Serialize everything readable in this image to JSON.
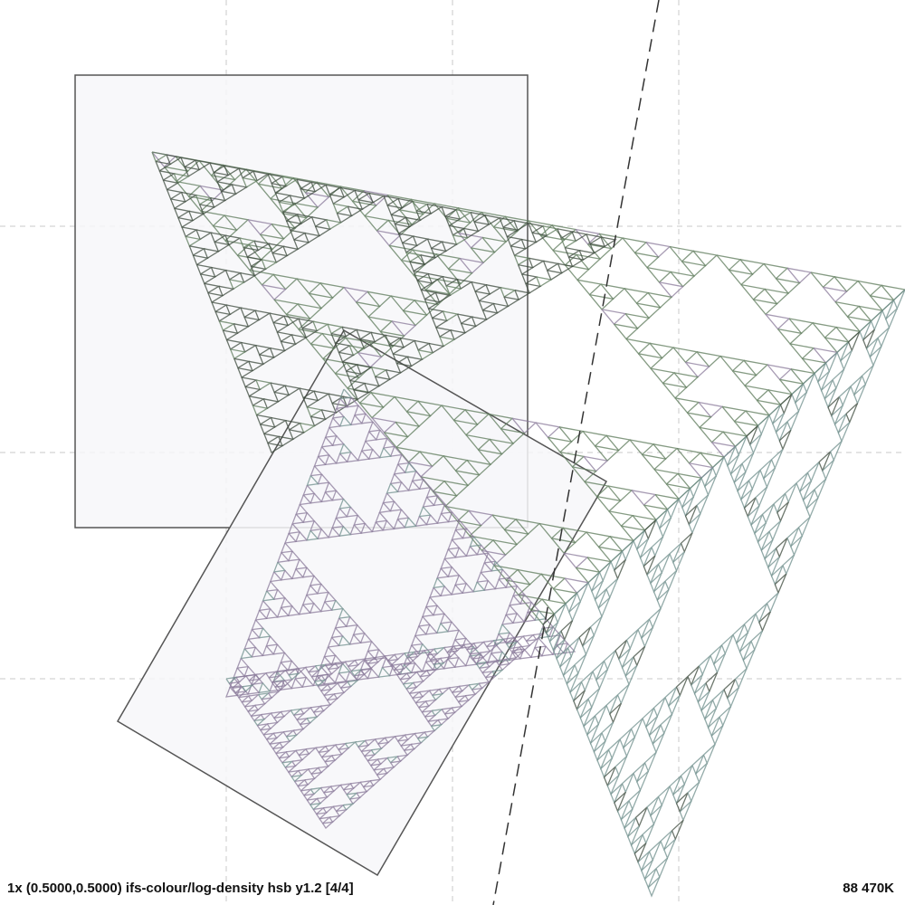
{
  "viewer": {
    "status_left": "1x (0.5000,0.5000) ifs-colour/log-density hsb y1.2 [4/4]",
    "status_right": "88 470K"
  },
  "render": {
    "fractal": "sierpinski-fern",
    "depth": 5,
    "palette": {
      "background": "#ffffff",
      "grid": "#c8c8c8",
      "frame_stroke": "#555555",
      "frame_fill": "#f7f7f9",
      "axis": "#333333",
      "green": "#5c7a5a",
      "violet": "#8a7a9a",
      "teal": "#6f8f8c",
      "dark": "#3c4a3c"
    }
  }
}
